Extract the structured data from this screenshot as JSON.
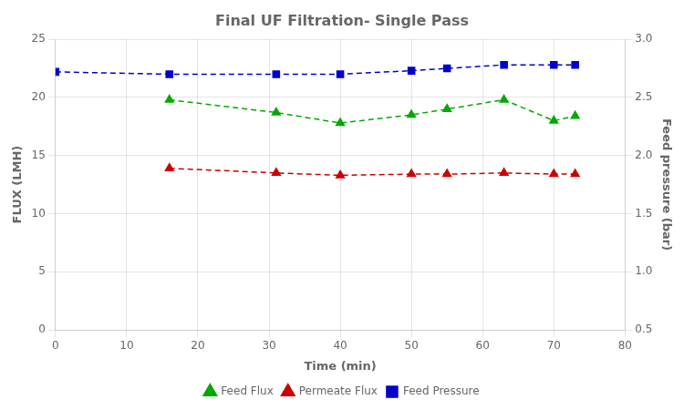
{
  "chart_data": {
    "type": "line",
    "title": "Final UF Filtration- Single Pass",
    "xlabel": "Time (min)",
    "ylabel": "FLUX (LMH)",
    "y2label": "Feed pressure (bar)",
    "x": [
      0,
      16,
      31,
      40,
      50,
      55,
      63,
      70,
      73
    ],
    "series": [
      {
        "name": "Feed Flux",
        "color": "#00aa00",
        "marker": "triangle",
        "line_style": "dashed",
        "values": [
          null,
          19.8,
          18.7,
          17.8,
          18.5,
          19.0,
          19.8,
          18.0,
          18.4
        ]
      },
      {
        "name": "Permeate Flux",
        "color": "#cc0000",
        "marker": "triangle",
        "line_style": "dashed",
        "values": [
          null,
          13.9,
          13.5,
          13.3,
          13.4,
          13.4,
          13.5,
          13.4,
          13.4
        ]
      },
      {
        "name": "Feed Pressure",
        "color": "#0000cc",
        "marker": "square",
        "line_style": "dashed",
        "axis": "y2",
        "values": [
          2.72,
          2.7,
          2.7,
          2.7,
          2.73,
          2.75,
          2.78,
          2.78,
          2.78
        ]
      }
    ],
    "xlim": [
      0,
      80
    ],
    "xticks": [
      0,
      10,
      20,
      30,
      40,
      50,
      60,
      70,
      80
    ],
    "ylim": [
      0,
      25
    ],
    "yticks": [
      0,
      5,
      10,
      15,
      20,
      25
    ],
    "y2lim": [
      0.5,
      3.0
    ],
    "y2ticks": [
      0.5,
      {
        "value": 1.0,
        "label": "1.0"
      },
      1.5,
      {
        "value": 2.0,
        "label": "2.0"
      },
      2.5,
      {
        "value": 3.0,
        "label": "3.0"
      }
    ],
    "grid": true,
    "legend": "bottom"
  }
}
